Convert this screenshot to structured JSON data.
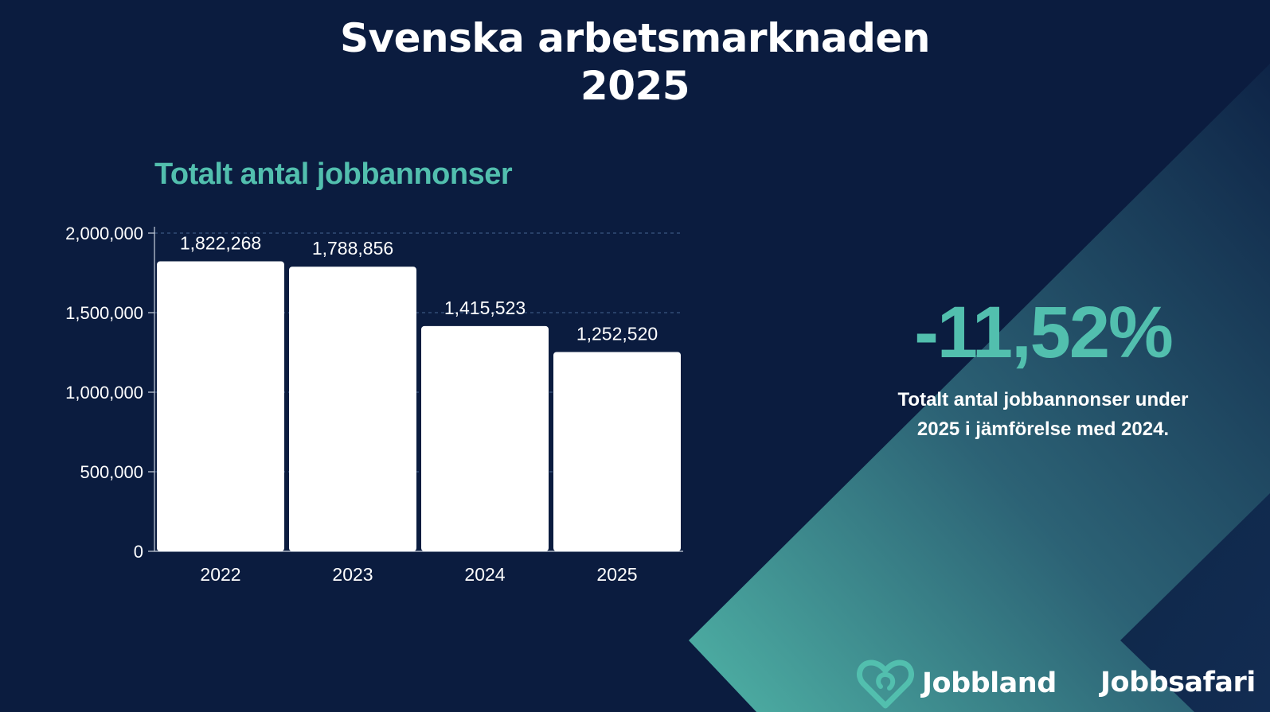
{
  "header": {
    "title_line1": "Svenska arbetsmarknaden",
    "title_line2": "2025"
  },
  "colors": {
    "background": "#0b1c3f",
    "accent": "#52bfae",
    "bar": "#ffffff",
    "text": "#ffffff"
  },
  "chart_data": {
    "type": "bar",
    "title": "Totalt antal jobbannonser",
    "xlabel": "",
    "ylabel": "",
    "categories": [
      "2022",
      "2023",
      "2024",
      "2025"
    ],
    "values": [
      1822268,
      1788856,
      1415523,
      1252520
    ],
    "value_labels": [
      "1,822,268",
      "1,788,856",
      "1,415,523",
      "1,252,520"
    ],
    "yticks": [
      0,
      500000,
      1000000,
      1500000,
      2000000
    ],
    "ytick_labels": [
      "0",
      "500,000",
      "1,000,000",
      "1,500,000",
      "2,000,000"
    ],
    "ylim": [
      0,
      2000000
    ],
    "grid": "horizontal dashed",
    "legend": "none"
  },
  "stat": {
    "value": "-11,52%",
    "description": "Totalt antal jobbannonser under 2025 i jämförelse med 2024."
  },
  "logos": {
    "jobbland": "Jobbland",
    "jobbland_icon": "heart-icon",
    "jobbsafari": "Jobbsafari"
  }
}
